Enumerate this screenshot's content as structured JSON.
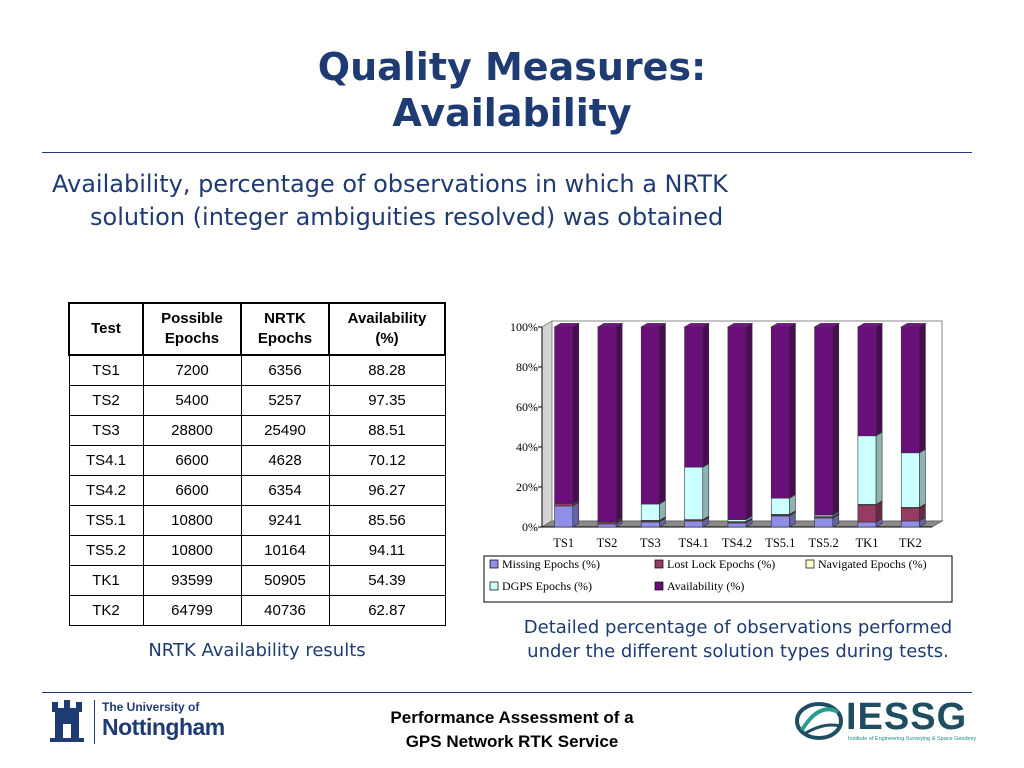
{
  "title": {
    "line1": "Quality Measures:",
    "line2": "Availability"
  },
  "subtitle": {
    "line1": "Availability, percentage of observations in which a NRTK",
    "line2": "solution (integer ambiguities resolved) was obtained"
  },
  "table": {
    "headers": [
      {
        "line1": "Test",
        "line2": ""
      },
      {
        "line1": "Possible",
        "line2": "Epochs"
      },
      {
        "line1": "NRTK",
        "line2": "Epochs"
      },
      {
        "line1": "Availability",
        "line2": "(%)"
      }
    ],
    "rows": [
      {
        "test": "TS1",
        "possible": "7200",
        "nrtk": "6356",
        "availability": "88.28"
      },
      {
        "test": "TS2",
        "possible": "5400",
        "nrtk": "5257",
        "availability": "97.35"
      },
      {
        "test": "TS3",
        "possible": "28800",
        "nrtk": "25490",
        "availability": "88.51"
      },
      {
        "test": "TS4.1",
        "possible": "6600",
        "nrtk": "4628",
        "availability": "70.12"
      },
      {
        "test": "TS4.2",
        "possible": "6600",
        "nrtk": "6354",
        "availability": "96.27"
      },
      {
        "test": "TS5.1",
        "possible": "10800",
        "nrtk": "9241",
        "availability": "85.56"
      },
      {
        "test": "TS5.2",
        "possible": "10800",
        "nrtk": "10164",
        "availability": "94.11"
      },
      {
        "test": "TK1",
        "possible": "93599",
        "nrtk": "50905",
        "availability": "54.39"
      },
      {
        "test": "TK2",
        "possible": "64799",
        "nrtk": "40736",
        "availability": "62.87"
      }
    ]
  },
  "captions": {
    "left": "NRTK Availability results",
    "right_line1": "Detailed percentage of observations performed",
    "right_line2": "under the different solution types during tests."
  },
  "footer": {
    "line1": "Performance Assessment of a",
    "line2": "GPS Network RTK Service",
    "uni_small": "The University of",
    "uni_big": "Nottingham",
    "iessg": "IESSG",
    "iessg_sub": "Institute of Engineering Surveying & Space Geodesy"
  },
  "chart_data": {
    "type": "bar",
    "stacked": true,
    "three_d": true,
    "categories": [
      "TS1",
      "TS2",
      "TS3",
      "TS4.1",
      "TS4.2",
      "TS5.1",
      "TS5.2",
      "TK1",
      "TK2"
    ],
    "series": [
      {
        "name": "Missing Epochs (%)",
        "color": "#8f8fe8",
        "values": [
          10.5,
          1.5,
          2.5,
          3.0,
          2.0,
          5.5,
          4.5,
          2.5,
          3.0
        ]
      },
      {
        "name": "Lost Lock Epochs (%)",
        "color": "#963c63",
        "values": [
          1.2,
          1.0,
          0.5,
          0.5,
          0.5,
          0.5,
          0.5,
          8.5,
          6.5
        ]
      },
      {
        "name": "Navigated Epochs (%)",
        "color": "#ffffcc",
        "values": [
          0.0,
          0.2,
          0.3,
          0.2,
          0.2,
          0.3,
          0.2,
          0.3,
          0.3
        ]
      },
      {
        "name": "DGPS  Epochs (%)",
        "color": "#ccffff",
        "values": [
          0.0,
          0.0,
          8.2,
          26.2,
          1.0,
          8.1,
          0.7,
          34.3,
          27.3
        ]
      },
      {
        "name": "Availability (%)",
        "color": "#6a0f7a",
        "values": [
          88.3,
          97.3,
          88.5,
          70.1,
          96.3,
          85.6,
          94.1,
          54.4,
          62.9
        ]
      }
    ],
    "title": "",
    "xlabel": "",
    "ylabel": "",
    "ylim": [
      0,
      100
    ],
    "y_ticks": [
      "0%",
      "20%",
      "40%",
      "60%",
      "80%",
      "100%"
    ],
    "grid": false,
    "legend_position": "bottom"
  }
}
